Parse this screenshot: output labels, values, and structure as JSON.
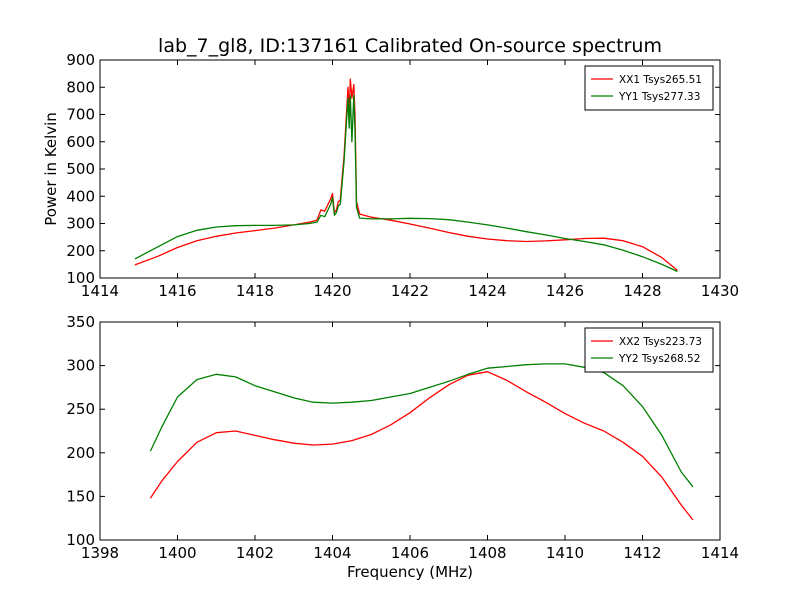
{
  "figure": {
    "title": "lab_7_gl8, ID:137161 Calibrated On-source spectrum"
  },
  "chart_data": [
    {
      "type": "line",
      "title": "lab_7_gl8, ID:137161 Calibrated On-source spectrum",
      "xlabel": "",
      "ylabel": "Power in Kelvin",
      "xlim": [
        1414,
        1430
      ],
      "ylim": [
        100,
        900
      ],
      "xticks": [
        "1414",
        "1416",
        "1418",
        "1420",
        "1422",
        "1424",
        "1426",
        "1428",
        "1430"
      ],
      "yticks": [
        "100",
        "200",
        "300",
        "400",
        "500",
        "600",
        "700",
        "800",
        "900"
      ],
      "grid": false,
      "legend": "top-right",
      "series": [
        {
          "name": "XX1 Tsys265.51",
          "color": "#ff0000",
          "points": [
            [
              1414.9,
              148
            ],
            [
              1415.5,
              180
            ],
            [
              1416.0,
              212
            ],
            [
              1416.5,
              237
            ],
            [
              1417.0,
              253
            ],
            [
              1417.5,
              265
            ],
            [
              1418.0,
              274
            ],
            [
              1418.5,
              283
            ],
            [
              1419.0,
              295
            ],
            [
              1419.4,
              305
            ],
            [
              1419.6,
              312
            ],
            [
              1419.7,
              350
            ],
            [
              1419.8,
              345
            ],
            [
              1419.95,
              390
            ],
            [
              1420.0,
              410
            ],
            [
              1420.05,
              340
            ],
            [
              1420.1,
              350
            ],
            [
              1420.15,
              380
            ],
            [
              1420.2,
              385
            ],
            [
              1420.25,
              470
            ],
            [
              1420.3,
              550
            ],
            [
              1420.35,
              680
            ],
            [
              1420.4,
              800
            ],
            [
              1420.43,
              700
            ],
            [
              1420.46,
              830
            ],
            [
              1420.5,
              760
            ],
            [
              1420.55,
              810
            ],
            [
              1420.58,
              700
            ],
            [
              1420.62,
              380
            ],
            [
              1420.7,
              335
            ],
            [
              1421.0,
              323
            ],
            [
              1421.5,
              312
            ],
            [
              1422.0,
              298
            ],
            [
              1422.5,
              283
            ],
            [
              1423.0,
              267
            ],
            [
              1423.5,
              253
            ],
            [
              1424.0,
              243
            ],
            [
              1424.5,
              237
            ],
            [
              1425.0,
              234
            ],
            [
              1425.5,
              236
            ],
            [
              1426.0,
              240
            ],
            [
              1426.5,
              245
            ],
            [
              1427.0,
              246
            ],
            [
              1427.5,
              237
            ],
            [
              1428.0,
              215
            ],
            [
              1428.5,
              175
            ],
            [
              1428.9,
              128
            ]
          ]
        },
        {
          "name": "YY1 Tsys277.33",
          "color": "#008000",
          "points": [
            [
              1414.9,
              170
            ],
            [
              1415.5,
              215
            ],
            [
              1416.0,
              252
            ],
            [
              1416.5,
              275
            ],
            [
              1417.0,
              287
            ],
            [
              1417.5,
              292
            ],
            [
              1418.0,
              293
            ],
            [
              1418.5,
              293
            ],
            [
              1419.0,
              295
            ],
            [
              1419.4,
              300
            ],
            [
              1419.6,
              305
            ],
            [
              1419.7,
              330
            ],
            [
              1419.8,
              325
            ],
            [
              1419.95,
              370
            ],
            [
              1420.0,
              395
            ],
            [
              1420.05,
              330
            ],
            [
              1420.1,
              340
            ],
            [
              1420.15,
              365
            ],
            [
              1420.2,
              370
            ],
            [
              1420.25,
              450
            ],
            [
              1420.3,
              530
            ],
            [
              1420.35,
              650
            ],
            [
              1420.4,
              760
            ],
            [
              1420.43,
              650
            ],
            [
              1420.46,
              770
            ],
            [
              1420.5,
              600
            ],
            [
              1420.55,
              770
            ],
            [
              1420.58,
              640
            ],
            [
              1420.62,
              360
            ],
            [
              1420.7,
              320
            ],
            [
              1421.0,
              317
            ],
            [
              1421.5,
              317
            ],
            [
              1422.0,
              319
            ],
            [
              1422.5,
              318
            ],
            [
              1423.0,
              314
            ],
            [
              1423.5,
              305
            ],
            [
              1424.0,
              295
            ],
            [
              1424.5,
              283
            ],
            [
              1425.0,
              270
            ],
            [
              1425.5,
              258
            ],
            [
              1426.0,
              245
            ],
            [
              1426.5,
              234
            ],
            [
              1427.0,
              222
            ],
            [
              1427.5,
              202
            ],
            [
              1428.0,
              178
            ],
            [
              1428.5,
              150
            ],
            [
              1428.9,
              124
            ]
          ]
        }
      ]
    },
    {
      "type": "line",
      "title": "",
      "xlabel": "Frequency (MHz)",
      "ylabel": "",
      "xlim": [
        1398,
        1414
      ],
      "ylim": [
        100,
        350
      ],
      "xticks": [
        "1398",
        "1400",
        "1402",
        "1404",
        "1406",
        "1408",
        "1410",
        "1412",
        "1414"
      ],
      "yticks": [
        "100",
        "150",
        "200",
        "250",
        "300",
        "350"
      ],
      "grid": false,
      "legend": "top-right",
      "series": [
        {
          "name": "XX2 Tsys223.73",
          "color": "#ff0000",
          "points": [
            [
              1399.3,
              148
            ],
            [
              1399.6,
              168
            ],
            [
              1400.0,
              190
            ],
            [
              1400.5,
              212
            ],
            [
              1401.0,
              223
            ],
            [
              1401.5,
              225
            ],
            [
              1402.0,
              220
            ],
            [
              1402.5,
              215
            ],
            [
              1403.0,
              211
            ],
            [
              1403.5,
              209
            ],
            [
              1404.0,
              210
            ],
            [
              1404.5,
              214
            ],
            [
              1405.0,
              221
            ],
            [
              1405.5,
              232
            ],
            [
              1406.0,
              246
            ],
            [
              1406.5,
              263
            ],
            [
              1407.0,
              278
            ],
            [
              1407.5,
              289
            ],
            [
              1408.0,
              293
            ],
            [
              1408.5,
              283
            ],
            [
              1409.0,
              270
            ],
            [
              1409.5,
              258
            ],
            [
              1410.0,
              245
            ],
            [
              1410.5,
              234
            ],
            [
              1411.0,
              225
            ],
            [
              1411.5,
              212
            ],
            [
              1412.0,
              196
            ],
            [
              1412.5,
              172
            ],
            [
              1413.0,
              140
            ],
            [
              1413.3,
              123
            ]
          ]
        },
        {
          "name": "YY2 Tsys268.52",
          "color": "#008000",
          "points": [
            [
              1399.3,
              202
            ],
            [
              1399.6,
              230
            ],
            [
              1400.0,
              264
            ],
            [
              1400.5,
              284
            ],
            [
              1401.0,
              290
            ],
            [
              1401.5,
              287
            ],
            [
              1402.0,
              277
            ],
            [
              1402.5,
              270
            ],
            [
              1403.0,
              263
            ],
            [
              1403.5,
              258
            ],
            [
              1404.0,
              257
            ],
            [
              1404.5,
              258
            ],
            [
              1405.0,
              260
            ],
            [
              1405.5,
              264
            ],
            [
              1406.0,
              268
            ],
            [
              1406.5,
              275
            ],
            [
              1407.0,
              282
            ],
            [
              1407.5,
              290
            ],
            [
              1408.0,
              297
            ],
            [
              1408.5,
              299
            ],
            [
              1409.0,
              301
            ],
            [
              1409.5,
              302
            ],
            [
              1410.0,
              302
            ],
            [
              1410.5,
              298
            ],
            [
              1411.0,
              292
            ],
            [
              1411.5,
              277
            ],
            [
              1412.0,
              253
            ],
            [
              1412.5,
              220
            ],
            [
              1413.0,
              178
            ],
            [
              1413.3,
              161
            ]
          ]
        }
      ]
    }
  ]
}
